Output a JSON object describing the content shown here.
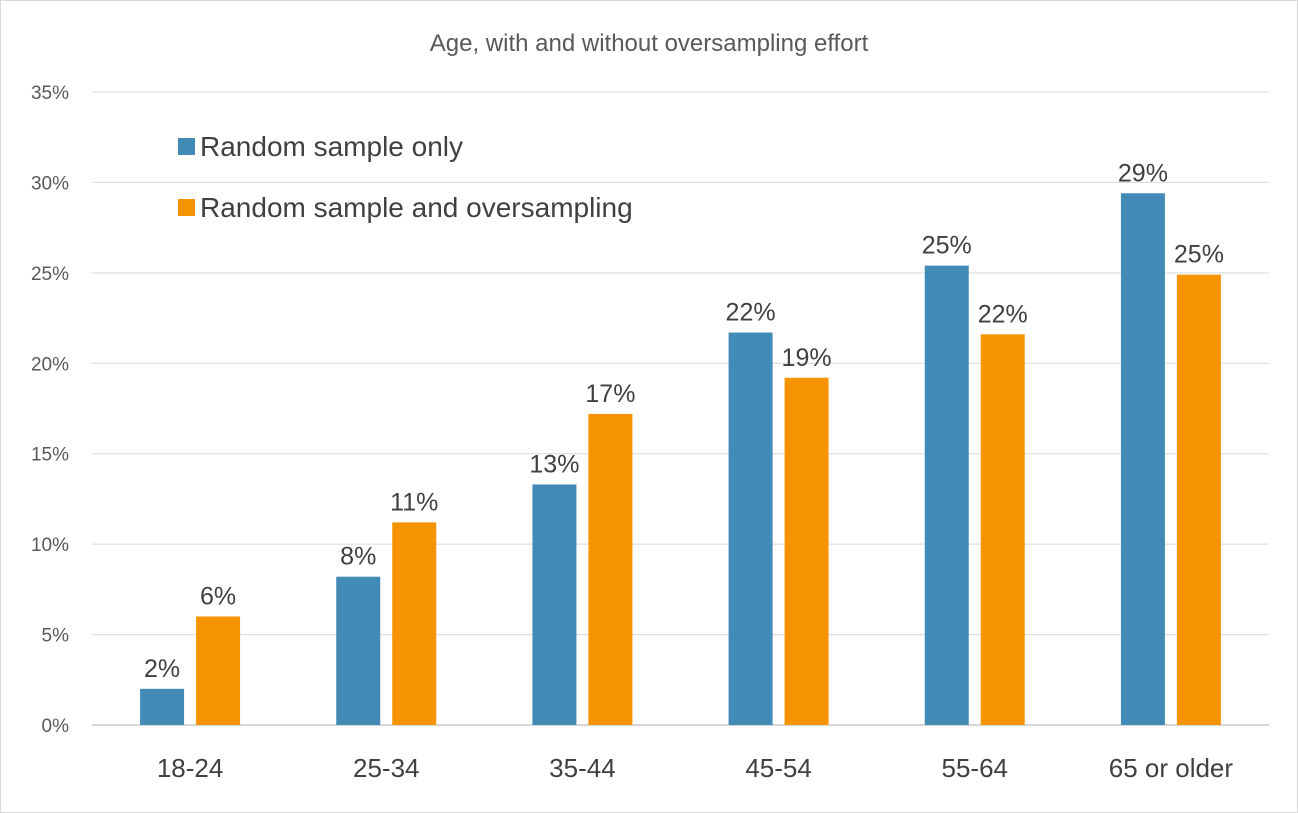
{
  "chart_data": {
    "type": "bar",
    "title": "Age, with and without oversampling effort",
    "xlabel": "",
    "ylabel": "",
    "categories": [
      "18-24",
      "25-34",
      "35-44",
      "45-54",
      "55-64",
      "65 or older"
    ],
    "series": [
      {
        "name": "Random sample only",
        "color": "#428bb7",
        "values": [
          2,
          8.2,
          13.3,
          21.7,
          25.4,
          29.4
        ],
        "labels": [
          "2%",
          "8%",
          "13%",
          "22%",
          "25%",
          "29%"
        ]
      },
      {
        "name": "Random sample and oversampling",
        "color": "#f59300",
        "values": [
          6,
          11.2,
          17.2,
          19.2,
          21.6,
          24.9
        ],
        "labels": [
          "6%",
          "11%",
          "17%",
          "19%",
          "22%",
          "25%"
        ]
      }
    ],
    "ylim": [
      0,
      35
    ],
    "yticks": [
      "0%",
      "5%",
      "10%",
      "15%",
      "20%",
      "25%",
      "30%",
      "35%"
    ],
    "ytick_values": [
      0,
      5,
      10,
      15,
      20,
      25,
      30,
      35
    ],
    "grid": true,
    "legend_position": "top-left"
  }
}
